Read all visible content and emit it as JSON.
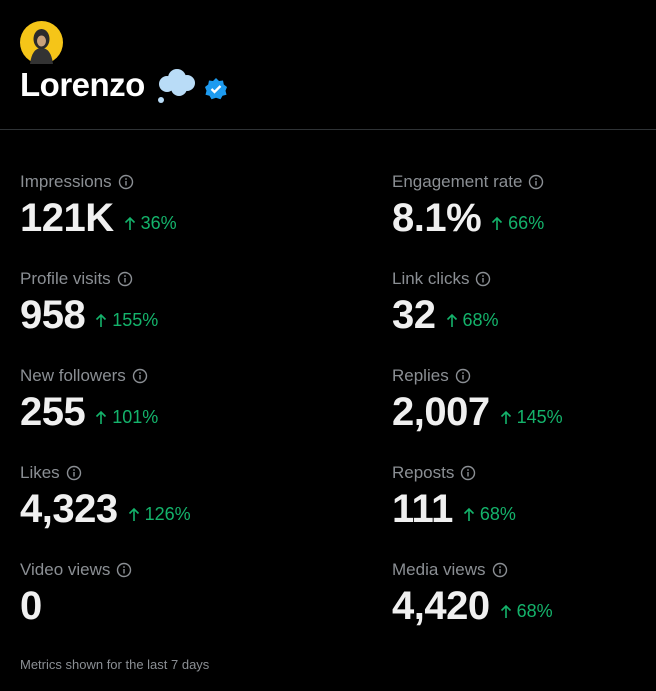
{
  "profile": {
    "name": "Lorenzo"
  },
  "metrics": [
    {
      "label": "Impressions",
      "value": "121K",
      "change": "36%"
    },
    {
      "label": "Engagement rate",
      "value": "8.1%",
      "change": "66%"
    },
    {
      "label": "Profile visits",
      "value": "958",
      "change": "155%"
    },
    {
      "label": "Link clicks",
      "value": "32",
      "change": "68%"
    },
    {
      "label": "New followers",
      "value": "255",
      "change": "101%"
    },
    {
      "label": "Replies",
      "value": "2,007",
      "change": "145%"
    },
    {
      "label": "Likes",
      "value": "4,323",
      "change": "126%"
    },
    {
      "label": "Reposts",
      "value": "111",
      "change": "68%"
    },
    {
      "label": "Video views",
      "value": "0"
    },
    {
      "label": "Media views",
      "value": "4,420",
      "change": "68%"
    }
  ],
  "footer": "Metrics shown for the last 7 days"
}
